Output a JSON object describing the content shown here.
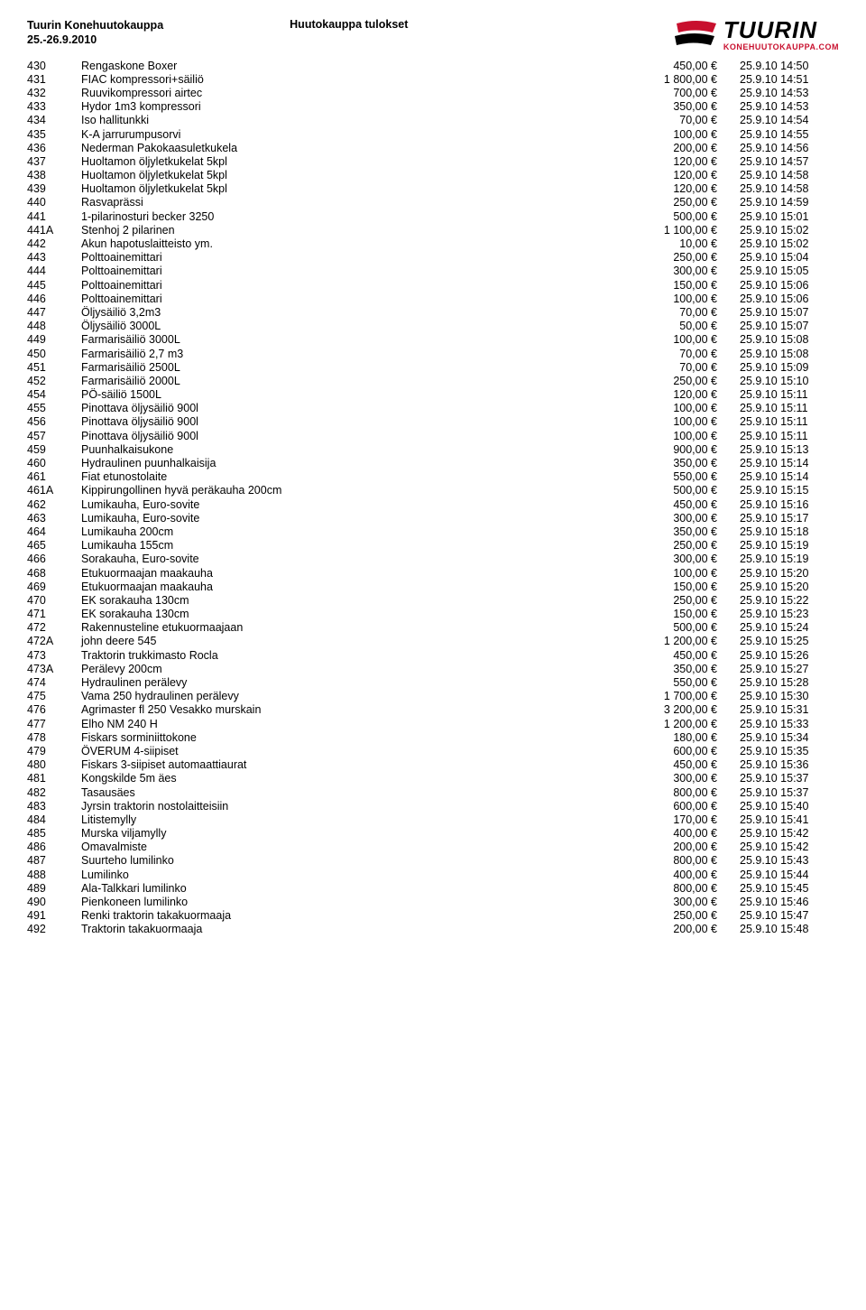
{
  "header": {
    "title_line1": "Tuurin Konehuutokauppa",
    "title_line2": "25.-26.9.2010",
    "subtitle": "Huutokauppa tulokset",
    "logo_main": "TUURIN",
    "logo_sub": "KONEHUUTOKAUPPA.COM",
    "logo_red": "#c8102e",
    "logo_black": "#000000"
  },
  "rows": [
    {
      "id": "430",
      "desc": "Rengaskone Boxer",
      "price": "450,00 €",
      "ts": "25.9.10 14:50"
    },
    {
      "id": "431",
      "desc": "FIAC kompressori+säiliö",
      "price": "1 800,00 €",
      "ts": "25.9.10 14:51"
    },
    {
      "id": "432",
      "desc": "Ruuvikompressori airtec",
      "price": "700,00 €",
      "ts": "25.9.10 14:53"
    },
    {
      "id": "433",
      "desc": "Hydor 1m3 kompressori",
      "price": "350,00 €",
      "ts": "25.9.10 14:53"
    },
    {
      "id": "434",
      "desc": "Iso hallitunkki",
      "price": "70,00 €",
      "ts": "25.9.10 14:54"
    },
    {
      "id": "435",
      "desc": "K-A jarrurumpusorvi",
      "price": "100,00 €",
      "ts": "25.9.10 14:55"
    },
    {
      "id": "436",
      "desc": "Nederman Pakokaasuletkukela",
      "price": "200,00 €",
      "ts": "25.9.10 14:56"
    },
    {
      "id": "437",
      "desc": "Huoltamon öljyletkukelat 5kpl",
      "price": "120,00 €",
      "ts": "25.9.10 14:57"
    },
    {
      "id": "438",
      "desc": "Huoltamon öljyletkukelat 5kpl",
      "price": "120,00 €",
      "ts": "25.9.10 14:58"
    },
    {
      "id": "439",
      "desc": "Huoltamon öljyletkukelat 5kpl",
      "price": "120,00 €",
      "ts": "25.9.10 14:58"
    },
    {
      "id": "440",
      "desc": "Rasvaprässi",
      "price": "250,00 €",
      "ts": "25.9.10 14:59"
    },
    {
      "id": "441",
      "desc": "1-pilarinosturi becker 3250",
      "price": "500,00 €",
      "ts": "25.9.10 15:01"
    },
    {
      "id": "441A",
      "desc": "Stenhoj 2 pilarinen",
      "price": "1 100,00 €",
      "ts": "25.9.10 15:02"
    },
    {
      "id": "442",
      "desc": "Akun hapotuslaitteisto ym.",
      "price": "10,00 €",
      "ts": "25.9.10 15:02"
    },
    {
      "id": "443",
      "desc": "Polttoainemittari",
      "price": "250,00 €",
      "ts": "25.9.10 15:04"
    },
    {
      "id": "444",
      "desc": "Polttoainemittari",
      "price": "300,00 €",
      "ts": "25.9.10 15:05"
    },
    {
      "id": "445",
      "desc": "Polttoainemittari",
      "price": "150,00 €",
      "ts": "25.9.10 15:06"
    },
    {
      "id": "446",
      "desc": "Polttoainemittari",
      "price": "100,00 €",
      "ts": "25.9.10 15:06"
    },
    {
      "id": "447",
      "desc": "Öljysäiliö 3,2m3",
      "price": "70,00 €",
      "ts": "25.9.10 15:07"
    },
    {
      "id": "448",
      "desc": "Öljysäiliö 3000L",
      "price": "50,00 €",
      "ts": "25.9.10 15:07"
    },
    {
      "id": "449",
      "desc": "Farmarisäiliö 3000L",
      "price": "100,00 €",
      "ts": "25.9.10 15:08"
    },
    {
      "id": "450",
      "desc": "Farmarisäiliö 2,7 m3",
      "price": "70,00 €",
      "ts": "25.9.10 15:08"
    },
    {
      "id": "451",
      "desc": "Farmarisäiliö 2500L",
      "price": "70,00 €",
      "ts": "25.9.10 15:09"
    },
    {
      "id": "452",
      "desc": "Farmarisäiliö 2000L",
      "price": "250,00 €",
      "ts": "25.9.10 15:10"
    },
    {
      "id": "454",
      "desc": "PÖ-säiliö 1500L",
      "price": "120,00 €",
      "ts": "25.9.10 15:11"
    },
    {
      "id": "455",
      "desc": "Pinottava öljysäiliö 900l",
      "price": "100,00 €",
      "ts": "25.9.10 15:11"
    },
    {
      "id": "456",
      "desc": "Pinottava öljysäiliö 900l",
      "price": "100,00 €",
      "ts": "25.9.10 15:11"
    },
    {
      "id": "457",
      "desc": "Pinottava öljysäiliö 900l",
      "price": "100,00 €",
      "ts": "25.9.10 15:11"
    },
    {
      "id": "459",
      "desc": "Puunhalkaisukone",
      "price": "900,00 €",
      "ts": "25.9.10 15:13"
    },
    {
      "id": "460",
      "desc": "Hydraulinen puunhalkaisija",
      "price": "350,00 €",
      "ts": "25.9.10 15:14"
    },
    {
      "id": "461",
      "desc": "Fiat etunostolaite",
      "price": "550,00 €",
      "ts": "25.9.10 15:14"
    },
    {
      "id": "461A",
      "desc": "Kippirungollinen hyvä peräkauha 200cm",
      "price": "500,00 €",
      "ts": "25.9.10 15:15"
    },
    {
      "id": "462",
      "desc": "Lumikauha, Euro-sovite",
      "price": "450,00 €",
      "ts": "25.9.10 15:16"
    },
    {
      "id": "463",
      "desc": "Lumikauha, Euro-sovite",
      "price": "300,00 €",
      "ts": "25.9.10 15:17"
    },
    {
      "id": "464",
      "desc": "Lumikauha 200cm",
      "price": "350,00 €",
      "ts": "25.9.10 15:18"
    },
    {
      "id": "465",
      "desc": "Lumikauha 155cm",
      "price": "250,00 €",
      "ts": "25.9.10 15:19"
    },
    {
      "id": "466",
      "desc": "Sorakauha, Euro-sovite",
      "price": "300,00 €",
      "ts": "25.9.10 15:19"
    },
    {
      "id": "468",
      "desc": "Etukuormaajan maakauha",
      "price": "100,00 €",
      "ts": "25.9.10 15:20"
    },
    {
      "id": "469",
      "desc": "Etukuormaajan maakauha",
      "price": "150,00 €",
      "ts": "25.9.10 15:20"
    },
    {
      "id": "470",
      "desc": "EK sorakauha 130cm",
      "price": "250,00 €",
      "ts": "25.9.10 15:22"
    },
    {
      "id": "471",
      "desc": "EK sorakauha 130cm",
      "price": "150,00 €",
      "ts": "25.9.10 15:23"
    },
    {
      "id": "472",
      "desc": "Rakennusteline etukuormaajaan",
      "price": "500,00 €",
      "ts": "25.9.10 15:24"
    },
    {
      "id": "472A",
      "desc": "john deere 545",
      "price": "1 200,00 €",
      "ts": "25.9.10 15:25"
    },
    {
      "id": "473",
      "desc": "Traktorin trukkimasto Rocla",
      "price": "450,00 €",
      "ts": "25.9.10 15:26"
    },
    {
      "id": "473A",
      "desc": "Perälevy 200cm",
      "price": "350,00 €",
      "ts": "25.9.10 15:27"
    },
    {
      "id": "474",
      "desc": "Hydraulinen perälevy",
      "price": "550,00 €",
      "ts": "25.9.10 15:28"
    },
    {
      "id": "475",
      "desc": "Vama 250 hydraulinen perälevy",
      "price": "1 700,00 €",
      "ts": "25.9.10 15:30"
    },
    {
      "id": "476",
      "desc": "Agrimaster fl 250 Vesakko murskain",
      "price": "3 200,00 €",
      "ts": "25.9.10 15:31"
    },
    {
      "id": "477",
      "desc": "Elho  NM 240 H",
      "price": "1 200,00 €",
      "ts": "25.9.10 15:33"
    },
    {
      "id": "478",
      "desc": "Fiskars sorminiittokone",
      "price": "180,00 €",
      "ts": "25.9.10 15:34"
    },
    {
      "id": "479",
      "desc": "ÖVERUM 4-siipiset",
      "price": "600,00 €",
      "ts": "25.9.10 15:35"
    },
    {
      "id": "480",
      "desc": "Fiskars 3-siipiset automaattiaurat",
      "price": "450,00 €",
      "ts": "25.9.10 15:36"
    },
    {
      "id": "481",
      "desc": "Kongskilde 5m äes",
      "price": "300,00 €",
      "ts": "25.9.10 15:37"
    },
    {
      "id": "482",
      "desc": "Tasausäes",
      "price": "800,00 €",
      "ts": "25.9.10 15:37"
    },
    {
      "id": "483",
      "desc": "Jyrsin traktorin nostolaitteisiin",
      "price": "600,00 €",
      "ts": "25.9.10 15:40"
    },
    {
      "id": "484",
      "desc": "Litistemylly",
      "price": "170,00 €",
      "ts": "25.9.10 15:41"
    },
    {
      "id": "485",
      "desc": "Murska viljamylly",
      "price": "400,00 €",
      "ts": "25.9.10 15:42"
    },
    {
      "id": "486",
      "desc": "Omavalmiste",
      "price": "200,00 €",
      "ts": "25.9.10 15:42"
    },
    {
      "id": "487",
      "desc": "Suurteho lumilinko",
      "price": "800,00 €",
      "ts": "25.9.10 15:43"
    },
    {
      "id": "488",
      "desc": "Lumilinko",
      "price": "400,00 €",
      "ts": "25.9.10 15:44"
    },
    {
      "id": "489",
      "desc": "Ala-Talkkari lumilinko",
      "price": "800,00 €",
      "ts": "25.9.10 15:45"
    },
    {
      "id": "490",
      "desc": "Pienkoneen lumilinko",
      "price": "300,00 €",
      "ts": "25.9.10 15:46"
    },
    {
      "id": "491",
      "desc": "Renki traktorin takakuormaaja",
      "price": "250,00 €",
      "ts": "25.9.10 15:47"
    },
    {
      "id": "492",
      "desc": "Traktorin takakuormaaja",
      "price": "200,00 €",
      "ts": "25.9.10 15:48"
    }
  ]
}
